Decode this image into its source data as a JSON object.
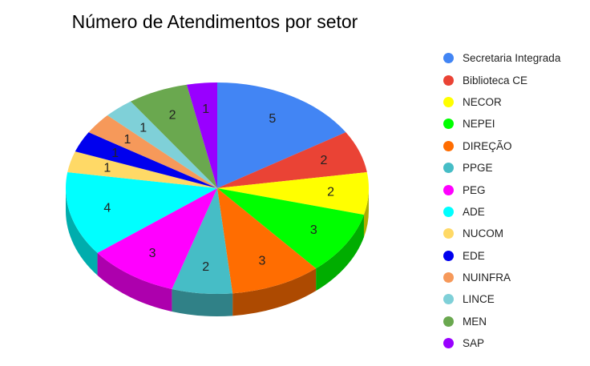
{
  "chart_data": {
    "type": "pie",
    "title": "Número de Atendimentos por setor",
    "three_d": true,
    "legend_position": "right",
    "slices": [
      {
        "label": "Secretaria Integrada",
        "value": 5,
        "color": "#4285f4"
      },
      {
        "label": "Biblioteca CE",
        "value": 2,
        "color": "#ea4335"
      },
      {
        "label": "NECOR",
        "value": 2,
        "color": "#ffff00"
      },
      {
        "label": "NEPEI",
        "value": 3,
        "color": "#00ff00"
      },
      {
        "label": "DIREÇÃO",
        "value": 3,
        "color": "#ff6d01"
      },
      {
        "label": "PPGE",
        "value": 2,
        "color": "#46bdc6"
      },
      {
        "label": "PEG",
        "value": 3,
        "color": "#ff00ff"
      },
      {
        "label": "ADE",
        "value": 4,
        "color": "#00ffff"
      },
      {
        "label": "NUCOM",
        "value": 1,
        "color": "#ffd966"
      },
      {
        "label": "EDE",
        "value": 1,
        "color": "#0000ee"
      },
      {
        "label": "NUINFRA",
        "value": 1,
        "color": "#f6995a"
      },
      {
        "label": "LINCE",
        "value": 1,
        "color": "#7fd0d8"
      },
      {
        "label": "MEN",
        "value": 2,
        "color": "#6aa84f"
      },
      {
        "label": "SAP",
        "value": 1,
        "color": "#9900ff"
      }
    ]
  }
}
